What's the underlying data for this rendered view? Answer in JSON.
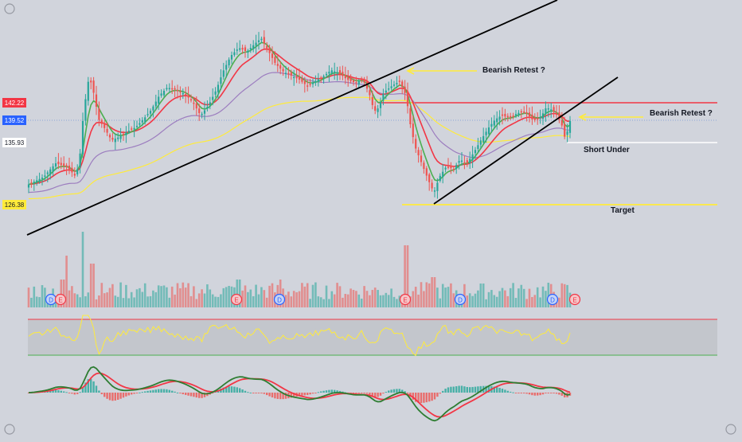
{
  "chart_data": {
    "type": "candlestick",
    "price_labels": [
      {
        "value": "142.22",
        "color": "#f23645",
        "text_color": "#ffffff"
      },
      {
        "value": "139.52",
        "color": "#2962ff",
        "text_color": "#ffffff"
      },
      {
        "value": "135.93",
        "color": "#ffffff",
        "text_color": "#131722"
      },
      {
        "value": "126.38",
        "color": "#ffeb3b",
        "text_color": "#131722"
      }
    ],
    "annotations": {
      "bearish_retest_1": "Bearish Retest ?",
      "bearish_retest_2": "Bearish Retest ?",
      "short_under": "Short Under",
      "target": "Target"
    },
    "event_markers": [
      "D",
      "E",
      "E",
      "D",
      "E",
      "D",
      "D",
      "E"
    ],
    "colors": {
      "up": "#26a69a",
      "down": "#ef5350",
      "ema_fast": "#4caf50",
      "ema_slow": "#f23645",
      "ma_long": "#ffeb3b",
      "ma_mid": "#9c7dbf",
      "trendline": "#000000",
      "resistance": "#f23645",
      "support_short": "#ffffff",
      "target_line": "#ffeb3b",
      "rsi_line": "#ffeb3b",
      "macd_line": "#2e7d32",
      "signal_line": "#f23645",
      "background": "#d1d4dc"
    }
  }
}
